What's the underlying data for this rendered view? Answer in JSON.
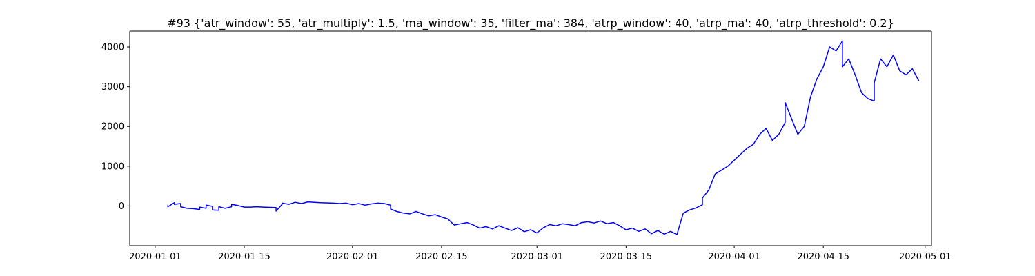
{
  "chart_data": {
    "type": "line",
    "title": "#93 {'atr_window': 55, 'atr_multiply': 1.5, 'ma_window': 35, 'filter_ma': 384, 'atrp_window': 40, 'atrp_ma': 40, 'atrp_threshold': 0.2}",
    "xlabel": "",
    "ylabel": "",
    "xlim": [
      "2019-12-28",
      "2020-05-02"
    ],
    "ylim": [
      -1000,
      4400
    ],
    "x_ticks": [
      "2020-01-01",
      "2020-01-15",
      "2020-02-01",
      "2020-02-15",
      "2020-03-01",
      "2020-03-15",
      "2020-04-01",
      "2020-04-15",
      "2020-05-01"
    ],
    "y_ticks": [
      0,
      1000,
      2000,
      3000,
      4000
    ],
    "grid": false,
    "color": "#0000ff",
    "series": [
      {
        "points": [
          [
            "2020-01-03",
            0
          ],
          [
            "2020-01-03",
            20
          ],
          [
            "2020-01-03",
            -20
          ],
          [
            "2020-01-04",
            80
          ],
          [
            "2020-01-04",
            40
          ],
          [
            "2020-01-05",
            60
          ],
          [
            "2020-01-05",
            -20
          ],
          [
            "2020-01-06",
            -60
          ],
          [
            "2020-01-07",
            -70
          ],
          [
            "2020-01-08",
            -90
          ],
          [
            "2020-01-08",
            -30
          ],
          [
            "2020-01-09",
            -60
          ],
          [
            "2020-01-09",
            20
          ],
          [
            "2020-01-10",
            -10
          ],
          [
            "2020-01-10",
            -100
          ],
          [
            "2020-01-11",
            -110
          ],
          [
            "2020-01-11",
            -20
          ],
          [
            "2020-01-12",
            -60
          ],
          [
            "2020-01-13",
            -20
          ],
          [
            "2020-01-13",
            40
          ],
          [
            "2020-01-14",
            10
          ],
          [
            "2020-01-15",
            -30
          ],
          [
            "2020-01-16",
            -30
          ],
          [
            "2020-01-17",
            -20
          ],
          [
            "2020-01-18",
            -30
          ],
          [
            "2020-01-20",
            -40
          ],
          [
            "2020-01-20",
            -130
          ],
          [
            "2020-01-21",
            50
          ],
          [
            "2020-01-21",
            70
          ],
          [
            "2020-01-22",
            40
          ],
          [
            "2020-01-23",
            90
          ],
          [
            "2020-01-24",
            60
          ],
          [
            "2020-01-25",
            100
          ],
          [
            "2020-01-26",
            90
          ],
          [
            "2020-01-27",
            80
          ],
          [
            "2020-01-29",
            70
          ],
          [
            "2020-01-30",
            60
          ],
          [
            "2020-01-31",
            70
          ],
          [
            "2020-02-01",
            30
          ],
          [
            "2020-02-02",
            60
          ],
          [
            "2020-02-03",
            20
          ],
          [
            "2020-02-04",
            50
          ],
          [
            "2020-02-05",
            70
          ],
          [
            "2020-02-06",
            60
          ],
          [
            "2020-02-07",
            20
          ],
          [
            "2020-02-07",
            -80
          ],
          [
            "2020-02-08",
            -140
          ],
          [
            "2020-02-09",
            -180
          ],
          [
            "2020-02-10",
            -200
          ],
          [
            "2020-02-11",
            -140
          ],
          [
            "2020-02-12",
            -200
          ],
          [
            "2020-02-13",
            -250
          ],
          [
            "2020-02-14",
            -220
          ],
          [
            "2020-02-15",
            -280
          ],
          [
            "2020-02-16",
            -330
          ],
          [
            "2020-02-17",
            -480
          ],
          [
            "2020-02-18",
            -450
          ],
          [
            "2020-02-19",
            -420
          ],
          [
            "2020-02-20",
            -480
          ],
          [
            "2020-02-21",
            -560
          ],
          [
            "2020-02-22",
            -520
          ],
          [
            "2020-02-23",
            -580
          ],
          [
            "2020-02-24",
            -500
          ],
          [
            "2020-02-25",
            -560
          ],
          [
            "2020-02-26",
            -620
          ],
          [
            "2020-02-27",
            -550
          ],
          [
            "2020-02-28",
            -650
          ],
          [
            "2020-02-29",
            -600
          ],
          [
            "2020-03-01",
            -680
          ],
          [
            "2020-03-02",
            -550
          ],
          [
            "2020-03-03",
            -470
          ],
          [
            "2020-03-04",
            -500
          ],
          [
            "2020-03-05",
            -450
          ],
          [
            "2020-03-06",
            -470
          ],
          [
            "2020-03-07",
            -500
          ],
          [
            "2020-03-08",
            -420
          ],
          [
            "2020-03-09",
            -400
          ],
          [
            "2020-03-10",
            -430
          ],
          [
            "2020-03-11",
            -380
          ],
          [
            "2020-03-12",
            -450
          ],
          [
            "2020-03-13",
            -420
          ],
          [
            "2020-03-14",
            -500
          ],
          [
            "2020-03-15",
            -600
          ],
          [
            "2020-03-16",
            -560
          ],
          [
            "2020-03-17",
            -640
          ],
          [
            "2020-03-18",
            -580
          ],
          [
            "2020-03-19",
            -700
          ],
          [
            "2020-03-20",
            -620
          ],
          [
            "2020-03-21",
            -710
          ],
          [
            "2020-03-22",
            -640
          ],
          [
            "2020-03-23",
            -720
          ],
          [
            "2020-03-24",
            -180
          ],
          [
            "2020-03-25",
            -100
          ],
          [
            "2020-03-26",
            -50
          ],
          [
            "2020-03-27",
            30
          ],
          [
            "2020-03-27",
            200
          ],
          [
            "2020-03-28",
            400
          ],
          [
            "2020-03-29",
            800
          ],
          [
            "2020-03-30",
            900
          ],
          [
            "2020-03-31",
            1000
          ],
          [
            "2020-04-01",
            1150
          ],
          [
            "2020-04-02",
            1300
          ],
          [
            "2020-04-03",
            1450
          ],
          [
            "2020-04-04",
            1550
          ],
          [
            "2020-04-05",
            1800
          ],
          [
            "2020-04-06",
            1950
          ],
          [
            "2020-04-07",
            1650
          ],
          [
            "2020-04-08",
            1800
          ],
          [
            "2020-04-09",
            2100
          ],
          [
            "2020-04-09",
            2600
          ],
          [
            "2020-04-10",
            2200
          ],
          [
            "2020-04-11",
            1800
          ],
          [
            "2020-04-12",
            2000
          ],
          [
            "2020-04-13",
            2750
          ],
          [
            "2020-04-14",
            3200
          ],
          [
            "2020-04-15",
            3500
          ],
          [
            "2020-04-16",
            4000
          ],
          [
            "2020-04-17",
            3900
          ],
          [
            "2020-04-18",
            4150
          ],
          [
            "2020-04-18",
            3500
          ],
          [
            "2020-04-19",
            3700
          ],
          [
            "2020-04-20",
            3300
          ],
          [
            "2020-04-21",
            2850
          ],
          [
            "2020-04-22",
            2700
          ],
          [
            "2020-04-23",
            2640
          ],
          [
            "2020-04-23",
            3100
          ],
          [
            "2020-04-24",
            3700
          ],
          [
            "2020-04-25",
            3500
          ],
          [
            "2020-04-26",
            3800
          ],
          [
            "2020-04-27",
            3400
          ],
          [
            "2020-04-28",
            3300
          ],
          [
            "2020-04-29",
            3450
          ],
          [
            "2020-04-30",
            3150
          ]
        ]
      }
    ]
  }
}
